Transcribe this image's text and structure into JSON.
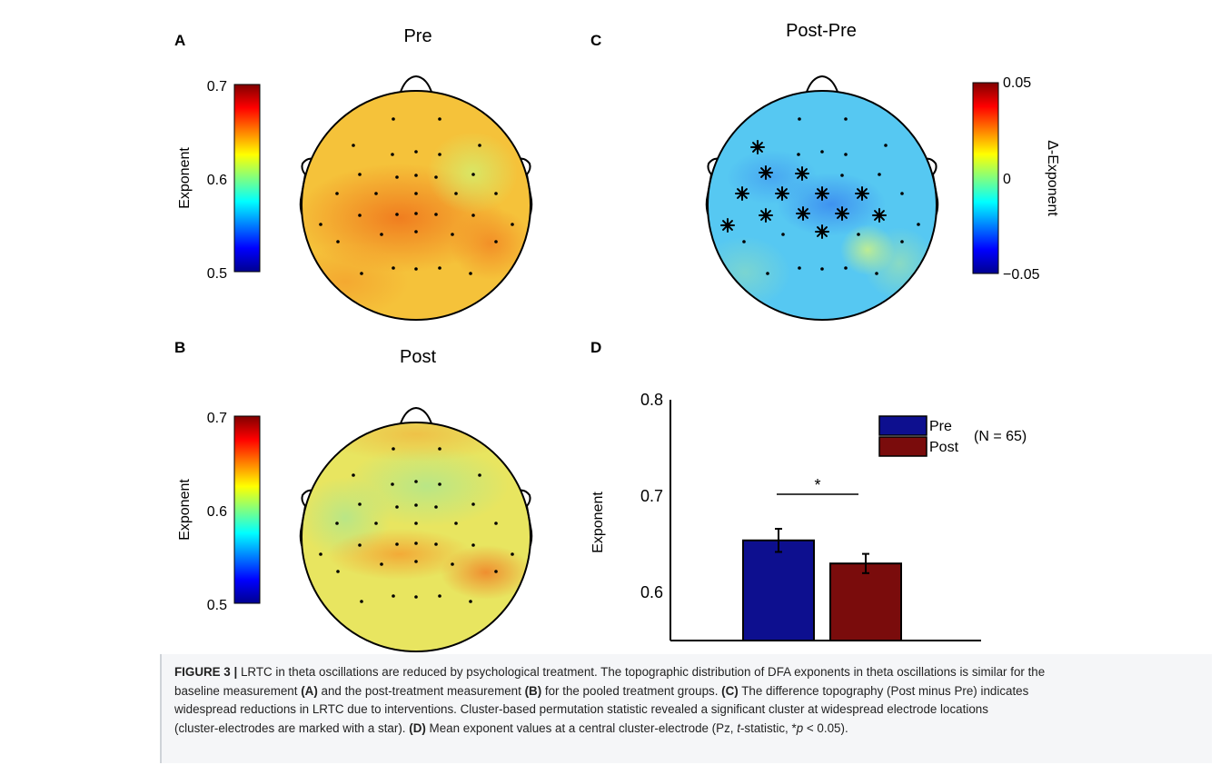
{
  "panels": {
    "A": {
      "letter": "A",
      "title": "Pre",
      "colorbar_label": "Exponent",
      "ticks": [
        "0.7",
        "0.6",
        "0.5"
      ]
    },
    "B": {
      "letter": "B",
      "title": "Post",
      "colorbar_label": "Exponent",
      "ticks": [
        "0.7",
        "0.6",
        "0.5"
      ]
    },
    "C": {
      "letter": "C",
      "title": "Post-Pre",
      "colorbar_label": "Δ-Exponent",
      "ticks": [
        "0.05",
        "0",
        "−0.05"
      ]
    },
    "D": {
      "letter": "D"
    }
  },
  "colors": {
    "pre_bar": "#0d0f8f",
    "post_bar": "#7a0c0c",
    "jet": [
      "#00008f",
      "#0000ff",
      "#0080ff",
      "#00ffff",
      "#80ff80",
      "#ffff00",
      "#ff8000",
      "#ff0000",
      "#800000"
    ]
  },
  "chart_data": {
    "type": "bar",
    "categories": [
      "Pre",
      "Post"
    ],
    "values": [
      0.654,
      0.63
    ],
    "errors": [
      0.012,
      0.01
    ],
    "ylabel": "Exponent",
    "ylim": [
      0.55,
      0.8
    ],
    "yticks": [
      "0.8",
      "0.7",
      "0.6"
    ],
    "legend": [
      "Pre",
      "Post"
    ],
    "legend_note": "(N = 65)",
    "significance": "*",
    "legend_position": "top-right"
  },
  "caption": {
    "fig_label": "FIGURE 3 |",
    "l1": " LRTC in theta oscillations are reduced by psychological treatment. The topographic distribution of DFA exponents in theta oscillations is similar for the",
    "l2a": "baseline measurement ",
    "ref_a": "(A)",
    "l2b": " and the post-treatment measurement ",
    "ref_b": "(B)",
    "l2c": " for the pooled treatment groups. ",
    "ref_c": "(C)",
    "l2d": " The difference topography (Post minus Pre) indicates",
    "l3": "widespread reductions in LRTC due to interventions. Cluster-based permutation statistic revealed a significant cluster at widespread electrode locations",
    "l4": "(cluster-electrodes are marked with a star). ",
    "ref_d": "(D)",
    "l4b": " Mean exponent values at a central cluster-electrode (Pz, ",
    "t_italic": "t",
    "l4c": "-statistic, *",
    "p_italic": "p",
    "l4d": " < 0.05)."
  }
}
